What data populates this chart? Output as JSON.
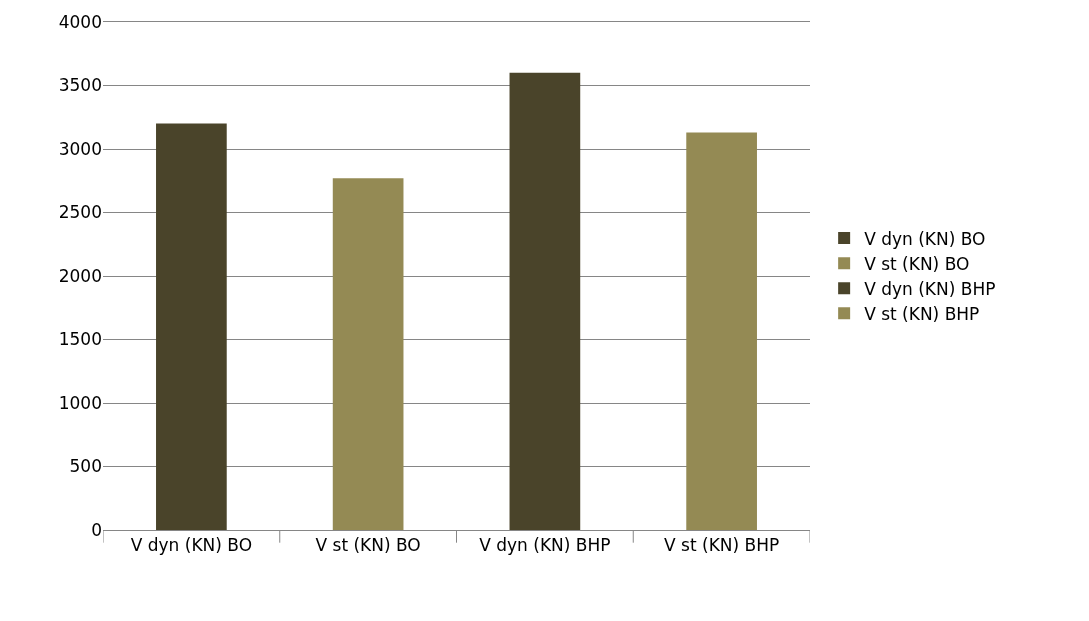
{
  "chart_data": {
    "type": "bar",
    "categories": [
      "V dyn (KN) BO",
      "V st (KN) BO",
      "V dyn (KN) BHP",
      "V st (KN) BHP"
    ],
    "series": [
      {
        "name": "V dyn (KN) BO",
        "color": "#4a442a",
        "values": [
          3200,
          null,
          null,
          null
        ]
      },
      {
        "name": "V st (KN) BO",
        "color": "#948a54",
        "values": [
          null,
          2770,
          null,
          null
        ]
      },
      {
        "name": "V dyn (KN) BHP",
        "color": "#4a442a",
        "values": [
          null,
          null,
          3600,
          null
        ]
      },
      {
        "name": "V st (KN) BHP",
        "color": "#948a54",
        "values": [
          null,
          null,
          null,
          3130
        ]
      }
    ],
    "ylim": [
      0,
      4000
    ],
    "yticks": [
      0,
      500,
      1000,
      1500,
      2000,
      2500,
      3000,
      3500,
      4000
    ],
    "grid": "y",
    "legend": "right"
  }
}
